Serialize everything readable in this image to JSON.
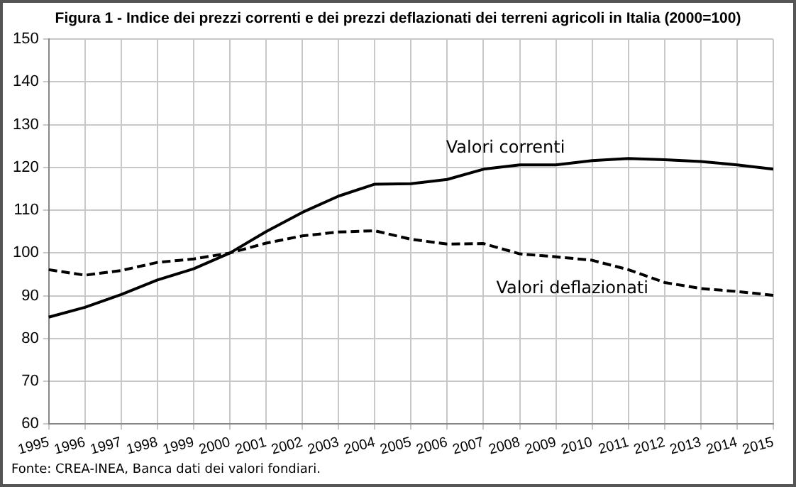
{
  "chart_data": {
    "type": "line",
    "title": "Figura  1 -  Indice  dei  prezzi  correnti  e  dei  prezzi  deflazionati  dei  terreni  agricoli  in  Italia  (2000=100)",
    "categories": [
      "1995",
      "1996",
      "1997",
      "1998",
      "1999",
      "2000",
      "2001",
      "2002",
      "2003",
      "2004",
      "2005",
      "2006",
      "2007",
      "2008",
      "2009",
      "2010",
      "2011",
      "2012",
      "2013",
      "2014",
      "2015"
    ],
    "series": [
      {
        "name": "Valori correnti",
        "color": "#000000",
        "line_style": "solid",
        "values": [
          85,
          87.3,
          90.3,
          93.7,
          96.3,
          100,
          105,
          109.5,
          113.3,
          116.1,
          116.2,
          117.2,
          119.6,
          120.6,
          120.6,
          121.6,
          122.1,
          121.8,
          121.4,
          120.6,
          119.6
        ]
      },
      {
        "name": "Valori deflazionati",
        "color": "#000000",
        "line_style": "dashed",
        "values": [
          96.1,
          94.8,
          95.9,
          97.8,
          98.6,
          100,
          102.3,
          104,
          104.9,
          105.2,
          103.2,
          102.1,
          102.2,
          99.8,
          99.1,
          98.3,
          96.1,
          93.1,
          91.7,
          91,
          90.1
        ]
      }
    ],
    "ylim": [
      60,
      150
    ],
    "yticks": [
      60,
      70,
      80,
      90,
      100,
      110,
      120,
      130,
      140,
      150
    ],
    "grid": true,
    "legend": false,
    "marker": "none",
    "annotations": [
      "Fonte: CREA-INEA, Banca dati dei valori fondiari."
    ]
  }
}
